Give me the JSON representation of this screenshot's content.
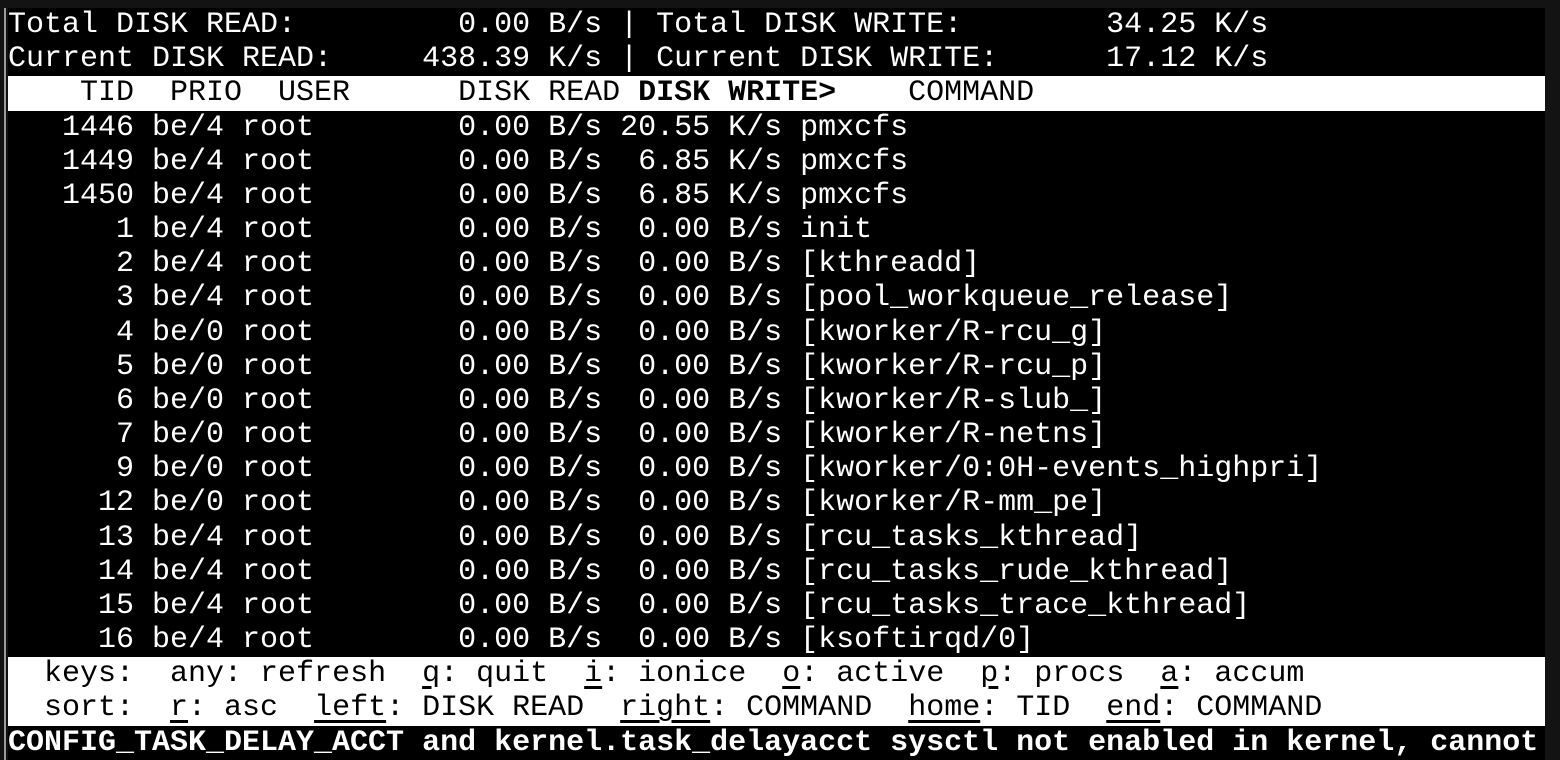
{
  "app": {
    "name": "iotop"
  },
  "colors": {
    "background": "#000000",
    "foreground": "#ffffff",
    "inverse_bg": "#ffffff",
    "inverse_fg": "#000000",
    "frame": "#131313"
  },
  "summary": {
    "total_read_label": "Total DISK READ:",
    "total_read_value": "0.00 B/s",
    "separator": "|",
    "total_write_label": "Total DISK WRITE:",
    "total_write_value": "34.25 K/s",
    "current_read_label": "Current DISK READ:",
    "current_read_value": "438.39 K/s",
    "current_write_label": "Current DISK WRITE:",
    "current_write_value": "17.12 K/s"
  },
  "table": {
    "columns": [
      "TID",
      "PRIO",
      "USER",
      "DISK READ",
      "DISK WRITE>",
      "COMMAND"
    ],
    "sort_column": "DISK WRITE>",
    "rows": [
      {
        "tid": "1446",
        "prio": "be/4",
        "user": "root",
        "disk_read": "0.00 B/s",
        "disk_write": "20.55 K/s",
        "command": "pmxcfs"
      },
      {
        "tid": "1449",
        "prio": "be/4",
        "user": "root",
        "disk_read": "0.00 B/s",
        "disk_write": "6.85 K/s",
        "command": "pmxcfs"
      },
      {
        "tid": "1450",
        "prio": "be/4",
        "user": "root",
        "disk_read": "0.00 B/s",
        "disk_write": "6.85 K/s",
        "command": "pmxcfs"
      },
      {
        "tid": "1",
        "prio": "be/4",
        "user": "root",
        "disk_read": "0.00 B/s",
        "disk_write": "0.00 B/s",
        "command": "init"
      },
      {
        "tid": "2",
        "prio": "be/4",
        "user": "root",
        "disk_read": "0.00 B/s",
        "disk_write": "0.00 B/s",
        "command": "[kthreadd]"
      },
      {
        "tid": "3",
        "prio": "be/4",
        "user": "root",
        "disk_read": "0.00 B/s",
        "disk_write": "0.00 B/s",
        "command": "[pool_workqueue_release]"
      },
      {
        "tid": "4",
        "prio": "be/0",
        "user": "root",
        "disk_read": "0.00 B/s",
        "disk_write": "0.00 B/s",
        "command": "[kworker/R-rcu_g]"
      },
      {
        "tid": "5",
        "prio": "be/0",
        "user": "root",
        "disk_read": "0.00 B/s",
        "disk_write": "0.00 B/s",
        "command": "[kworker/R-rcu_p]"
      },
      {
        "tid": "6",
        "prio": "be/0",
        "user": "root",
        "disk_read": "0.00 B/s",
        "disk_write": "0.00 B/s",
        "command": "[kworker/R-slub_]"
      },
      {
        "tid": "7",
        "prio": "be/0",
        "user": "root",
        "disk_read": "0.00 B/s",
        "disk_write": "0.00 B/s",
        "command": "[kworker/R-netns]"
      },
      {
        "tid": "9",
        "prio": "be/0",
        "user": "root",
        "disk_read": "0.00 B/s",
        "disk_write": "0.00 B/s",
        "command": "[kworker/0:0H-events_highpri]"
      },
      {
        "tid": "12",
        "prio": "be/0",
        "user": "root",
        "disk_read": "0.00 B/s",
        "disk_write": "0.00 B/s",
        "command": "[kworker/R-mm_pe]"
      },
      {
        "tid": "13",
        "prio": "be/4",
        "user": "root",
        "disk_read": "0.00 B/s",
        "disk_write": "0.00 B/s",
        "command": "[rcu_tasks_kthread]"
      },
      {
        "tid": "14",
        "prio": "be/4",
        "user": "root",
        "disk_read": "0.00 B/s",
        "disk_write": "0.00 B/s",
        "command": "[rcu_tasks_rude_kthread]"
      },
      {
        "tid": "15",
        "prio": "be/4",
        "user": "root",
        "disk_read": "0.00 B/s",
        "disk_write": "0.00 B/s",
        "command": "[rcu_tasks_trace_kthread]"
      },
      {
        "tid": "16",
        "prio": "be/4",
        "user": "root",
        "disk_read": "0.00 B/s",
        "disk_write": "0.00 B/s",
        "command": "[ksoftirqd/0]"
      }
    ]
  },
  "help": {
    "keys_label": "keys:",
    "keys_items": [
      {
        "key": "any",
        "action": "refresh",
        "underline_key": false
      },
      {
        "key": "q",
        "action": "quit",
        "underline_key": true
      },
      {
        "key": "i",
        "action": "ionice",
        "underline_key": true
      },
      {
        "key": "o",
        "action": "active",
        "underline_key": true
      },
      {
        "key": "p",
        "action": "procs",
        "underline_key": true
      },
      {
        "key": "a",
        "action": "accum",
        "underline_key": true
      }
    ],
    "sort_label": "sort:",
    "sort_items": [
      {
        "key": "r",
        "action": "asc",
        "underline_key": true
      },
      {
        "key": "left",
        "action": "DISK READ",
        "underline_key": true
      },
      {
        "key": "right",
        "action": "COMMAND",
        "underline_key": true
      },
      {
        "key": "home",
        "action": "TID",
        "underline_key": true
      },
      {
        "key": "end",
        "action": "COMMAND",
        "underline_key": true
      }
    ]
  },
  "status_bar": {
    "message": "CONFIG_TASK_DELAY_ACCT and kernel.task_delayacct sysctl not enabled in kernel, cannot"
  }
}
